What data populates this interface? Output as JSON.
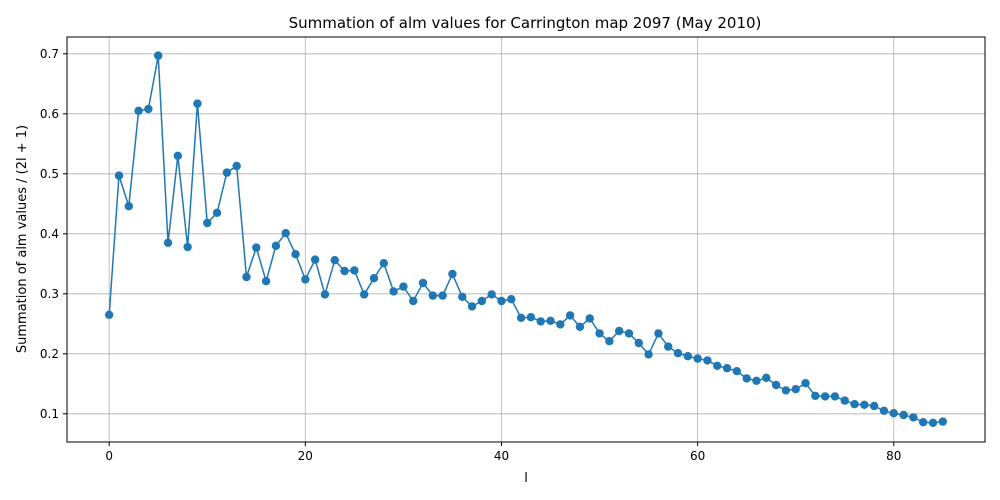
{
  "chart_data": {
    "type": "line",
    "title": "Summation of alm values for Carrington map 2097 (May 2010)",
    "xlabel": "l",
    "ylabel": "Summation of alm values / (2l + 1)",
    "xlim": [
      -4.3,
      89.3
    ],
    "ylim": [
      0.053,
      0.728
    ],
    "xticks": [
      0,
      20,
      40,
      60,
      80
    ],
    "yticks": [
      0.1,
      0.2,
      0.3,
      0.4,
      0.5,
      0.6,
      0.7
    ],
    "grid": true,
    "series_color": "#1f77b4",
    "marker": "circle",
    "x": [
      0,
      1,
      2,
      3,
      4,
      5,
      6,
      7,
      8,
      9,
      10,
      11,
      12,
      13,
      14,
      15,
      16,
      17,
      18,
      19,
      20,
      21,
      22,
      23,
      24,
      25,
      26,
      27,
      28,
      29,
      30,
      31,
      32,
      33,
      34,
      35,
      36,
      37,
      38,
      39,
      40,
      41,
      42,
      43,
      44,
      45,
      46,
      47,
      48,
      49,
      50,
      51,
      52,
      53,
      54,
      55,
      56,
      57,
      58,
      59,
      60,
      61,
      62,
      63,
      64,
      65,
      66,
      67,
      68,
      69,
      70,
      71,
      72,
      73,
      74,
      75,
      76,
      77,
      78,
      79,
      80,
      81,
      82,
      83,
      84,
      85
    ],
    "y": [
      0.265,
      0.497,
      0.446,
      0.605,
      0.608,
      0.697,
      0.385,
      0.53,
      0.378,
      0.617,
      0.418,
      0.435,
      0.502,
      0.513,
      0.328,
      0.377,
      0.321,
      0.38,
      0.401,
      0.366,
      0.324,
      0.357,
      0.299,
      0.356,
      0.338,
      0.339,
      0.299,
      0.326,
      0.351,
      0.304,
      0.312,
      0.288,
      0.318,
      0.297,
      0.297,
      0.333,
      0.295,
      0.279,
      0.288,
      0.299,
      0.288,
      0.291,
      0.26,
      0.261,
      0.254,
      0.255,
      0.249,
      0.264,
      0.245,
      0.259,
      0.234,
      0.221,
      0.238,
      0.234,
      0.218,
      0.199,
      0.234,
      0.212,
      0.201,
      0.196,
      0.192,
      0.189,
      0.18,
      0.176,
      0.171,
      0.159,
      0.155,
      0.16,
      0.148,
      0.139,
      0.141,
      0.151,
      0.13,
      0.129,
      0.129,
      0.122,
      0.116,
      0.115,
      0.113,
      0.105,
      0.101,
      0.098,
      0.094,
      0.086,
      0.085,
      0.087
    ]
  }
}
